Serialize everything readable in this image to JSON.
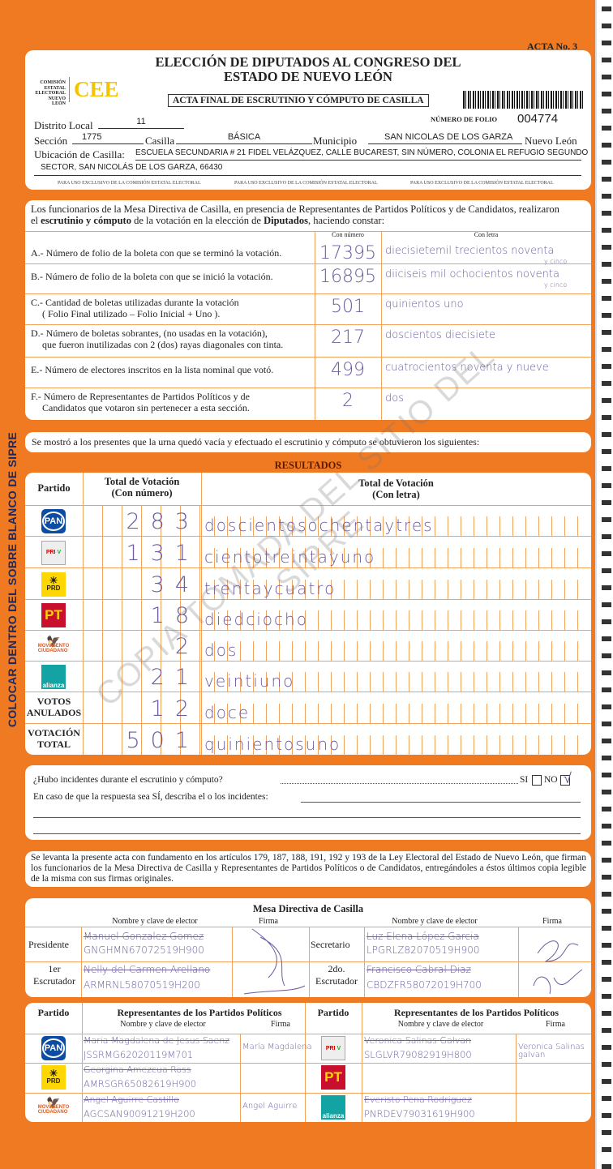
{
  "acta_no": "ACTA No. 3",
  "header": {
    "title_line1": "ELECCIÓN DE DIPUTADOS AL CONGRESO DEL",
    "title_line2": "ESTADO DE NUEVO LEÓN",
    "org_lines": [
      "COMISIÓN",
      "ESTATAL",
      "ELECTORAL",
      "NUEVO LEÓN"
    ],
    "logo_text": "CEE",
    "subtitle": "ACTA FINAL DE ESCRUTINIO Y CÓMPUTO DE CASILLA",
    "folio_label": "NÚMERO DE FOLIO",
    "folio": "004774",
    "distrito_label": "Distrito Local",
    "distrito": "11",
    "seccion_label": "Sección",
    "seccion": "1775",
    "casilla_label": "Casilla",
    "casilla": "BÁSICA",
    "municipio_label": "Municipio",
    "municipio": "SAN NICOLAS DE LOS GARZA",
    "estado": "Nuevo León",
    "ubicacion_label": "Ubicación de Casilla:",
    "ubicacion_line1": "ESCUELA SECUNDARIA  # 21 FIDEL VELÁZQUEZ, CALLE BUCAREST, SIN NÚMERO, COLONIA EL REFUGIO SEGUNDO",
    "ubicacion_line2": "SECTOR, SAN NICOLÁS DE LOS GARZA, 66430",
    "exclusive_note": "PARA USO EXCLUSIVO DE LA COMISIÓN ESTATAL ELECTORAL"
  },
  "constancia": {
    "intro_1": "Los funcionarios de la Mesa Directiva de Casilla, en presencia de Representantes de Partidos Políticos  y de Candidatos, realizaron",
    "intro_2a": "el ",
    "intro_2b": "escrutinio y cómputo",
    "intro_2c": " de la votación en la elección de ",
    "intro_2d": "Diputados",
    "intro_2e": ", haciendo constar:",
    "col_numero": "Con número",
    "col_letra": "Con letra",
    "rows": [
      {
        "l1": "A.- Número de folio de la boleta con que se terminó la votación.",
        "l2": "",
        "numero": "17395",
        "letra": "diecisietemil trecientos noventa",
        "letra2": "y cinco"
      },
      {
        "l1": "B.- Número de folio de la boleta con que se inició la votación.",
        "l2": "",
        "numero": "16895",
        "letra": "diiciseis mil ochocientos noventa",
        "letra2": "y cinco"
      },
      {
        "l1": "C.- Cantidad de boletas utilizadas durante la votación",
        "l2": "( Folio Final utilizado – Folio Inicial + Uno ).",
        "numero": "501",
        "letra": "quinientos uno",
        "letra2": ""
      },
      {
        "l1": "D.- Número de boletas sobrantes, (no usadas en la votación),",
        "l2": "que fueron inutilizadas con 2 (dos) rayas diagonales con tinta.",
        "numero": "217",
        "letra": "doscientos diecisiete",
        "letra2": ""
      },
      {
        "l1": "E.- Número de electores inscritos en la lista nominal que votó.",
        "l2": "",
        "numero": "499",
        "letra": "cuatrocientos noventa y nueve",
        "letra2": ""
      },
      {
        "l1": "F.- Número de Representantes de Partidos Políticos y de",
        "l2": "Candidatos que votaron sin pertenecer a esta sección.",
        "numero": "2",
        "letra": "dos",
        "letra2": ""
      }
    ]
  },
  "urna_text": "Se mostró a los presentes que la urna quedó vacía y efectuado el escrutinio y cómputo se obtuvieron los siguientes:",
  "resultados": {
    "title": "RESULTADOS",
    "col_partido": "Partido",
    "col_numero_1": "Total de Votación",
    "col_numero_2": "(Con número)",
    "col_letra_1": "Total de Votación",
    "col_letra_2": "(Con letra)",
    "rows": [
      {
        "party": "PAN",
        "numero": "283",
        "letra": "doscientosochentaytres"
      },
      {
        "party": "PRI / PVEM Compromiso por Nuevo León",
        "numero": "131",
        "letra": "cientotreintayuno"
      },
      {
        "party": "PRD",
        "numero": "34",
        "letra": "trentaycuatro"
      },
      {
        "party": "PT",
        "numero": "18",
        "letra": "diedciocho"
      },
      {
        "party": "MOVIMIENTO CIUDADANO",
        "numero": "2",
        "letra": "dos"
      },
      {
        "party": "alianza",
        "numero": "21",
        "letra": "veintiuno"
      },
      {
        "party": "VOTOS ANULADOS",
        "numero": "12",
        "letra": "doce"
      },
      {
        "party": "VOTACIÓN TOTAL",
        "numero": "501",
        "letra": "quinientosuno"
      }
    ]
  },
  "incidentes": {
    "question": "¿Hubo incidentes durante el escrutinio y cómputo?",
    "si": "SI",
    "no": "NO",
    "answer": "NO",
    "check": "√",
    "describe": "En caso de que la respuesta sea SÍ, describa el o los incidentes:"
  },
  "legal_text": "Se levanta la presente acta con fundamento en los artículos 179, 187, 188, 191, 192 y 193 de la Ley Electoral del Estado de Nuevo León, que firman los funcionarios de la Mesa Directiva de Casilla y Representantes de  Partidos Políticos o de Candidatos, entregándoles a éstos últimos copia legible de la misma con sus firmas originales.",
  "mesa": {
    "title": "Mesa Directiva de Casilla",
    "col_nombre": "Nombre y clave de elector",
    "col_firma": "Firma",
    "presidente_label": "Presidente",
    "presidente_nombre": "Manuel Gonzalez Gomez",
    "presidente_clave": "GNGHMN67072519H900",
    "secretario_label": "Secretario",
    "secretario_nombre": "Luz Elena López Garcia",
    "secretario_clave": "LPGRLZ82070519H900",
    "esc1_label_a": "1er",
    "esc1_label_b": "Escrutador",
    "esc1_nombre": "Nelly del Carmen Arellano",
    "esc1_clave": "ARMRNL58070519H200",
    "esc2_label_a": "2do.",
    "esc2_label_b": "Escrutador",
    "esc2_nombre": "Francisco Cabral Diaz",
    "esc2_clave": "CBDZFR58072019H700"
  },
  "representantes": {
    "col_partido": "Partido",
    "title": "Representantes de los Partidos Políticos",
    "col_nombre": "Nombre y clave de elector",
    "col_firma": "Firma",
    "left": [
      {
        "party": "PAN",
        "nombre": "Maria Magdalena de Jesus Saenz",
        "clave": "JSSRMG62020119M701",
        "firma": "María Magdalena"
      },
      {
        "party": "PRD",
        "nombre": "Georgina Amezcua Ross",
        "clave": "AMRSGR65082619H900",
        "firma": ""
      },
      {
        "party": "MOVIMIENTO CIUDADANO",
        "nombre": "Angel Aguirre Castillo",
        "clave": "AGCSAN90091219H200",
        "firma": "Angel Aguirre"
      }
    ],
    "right": [
      {
        "party": "PRI / PVEM",
        "nombre": "Veronica Salinas Galvan",
        "clave": "SLGLVR79082919H800",
        "firma": "Veronica Salinas galvan"
      },
      {
        "party": "PT",
        "nombre": "",
        "clave": "",
        "firma": ""
      },
      {
        "party": "alianza",
        "nombre": "Everisto Pena Rodriguez",
        "clave": "PNRDEV79031619H900",
        "firma": ""
      }
    ]
  },
  "side_text": "COLOCAR DENTRO DEL SOBRE BLANCO DE SIPRE",
  "watermark": "COPIA TOMADA DEL SITIO DEL SIPRE",
  "colors": {
    "background": "#f07a22",
    "panel": "#ffffff",
    "handwriting": "#6d5c9e",
    "cee_yellow": "#f5c400",
    "pan_blue": "#0c4da2",
    "pt_red": "#c8102e",
    "alianza_teal": "#13a3a3"
  }
}
